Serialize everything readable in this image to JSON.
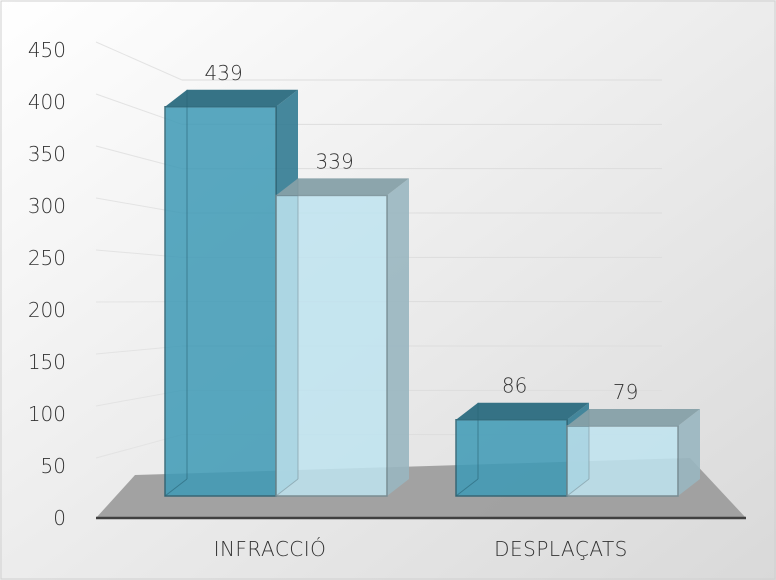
{
  "chart_data": {
    "type": "bar",
    "title": "",
    "xlabel": "",
    "ylabel": "",
    "ylim": [
      0,
      450
    ],
    "yticks": [
      0,
      50,
      100,
      150,
      200,
      250,
      300,
      350,
      400,
      450
    ],
    "categories": [
      "INFRACCIÓ",
      "DESPLAÇATS"
    ],
    "series": [
      {
        "values": [
          439,
          86
        ],
        "color": "#3e9ab6"
      },
      {
        "values": [
          339,
          79
        ],
        "color": "#bfe4f0"
      }
    ],
    "data_labels": [
      [
        "439",
        "86"
      ],
      [
        "339",
        "79"
      ]
    ],
    "grid": true,
    "legend": "none",
    "style": "3d-column"
  }
}
